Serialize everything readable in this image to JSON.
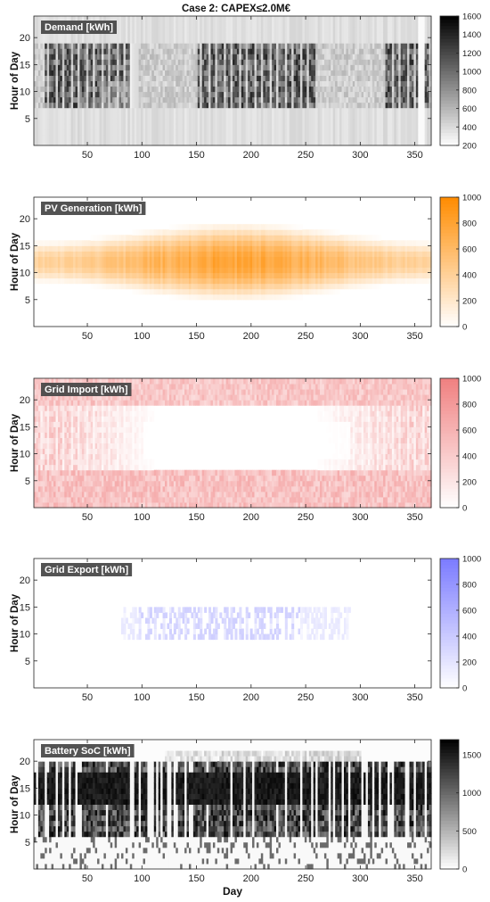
{
  "figure": {
    "title": "Case 2: CAPEX≤2.0M€",
    "xlabel": "Day"
  },
  "chart_data": [
    {
      "type": "heatmap",
      "title": "Demand [kWh]",
      "ylabel": "Hour of Day",
      "xlabel": "",
      "xlim": [
        1,
        365
      ],
      "ylim": [
        0,
        24
      ],
      "xticks": [
        50,
        100,
        150,
        200,
        250,
        300,
        350
      ],
      "yticks": [
        5,
        10,
        15,
        20
      ],
      "colorbar": {
        "min": 200,
        "max": 1600,
        "ticks": [
          200,
          400,
          600,
          800,
          1000,
          1200,
          1400,
          1600
        ],
        "low_color": "#ffffff",
        "high_color": "#000000"
      },
      "pattern": {
        "base_level": 320,
        "working_hours": [
          7,
          19
        ],
        "working_level": 1000,
        "weekly_stripes": true,
        "working_periods": [
          [
            10,
            95
          ],
          [
            150,
            258
          ],
          [
            320,
            365
          ]
        ],
        "noted_features": [
          "bright gaps on day 90-95 and 350-358",
          "dark vertical stripes on days near 230"
        ]
      }
    },
    {
      "type": "heatmap",
      "title": "PV Generation [kWh]",
      "ylabel": "Hour of Day",
      "xlabel": "",
      "xlim": [
        1,
        365
      ],
      "ylim": [
        0,
        24
      ],
      "xticks": [
        50,
        100,
        150,
        200,
        250,
        300,
        350
      ],
      "yticks": [
        5,
        10,
        15,
        20
      ],
      "colorbar": {
        "min": 0,
        "max": 1000,
        "ticks": [
          0,
          200,
          400,
          600,
          800,
          1000
        ],
        "low_color": "#ffffff",
        "high_color": "#ff8c00"
      },
      "pattern": {
        "peak_day": 185,
        "peak_hour": 12,
        "peak_level": 880,
        "winter_level": 450,
        "daylight_summer": [
          5,
          20
        ],
        "daylight_winter": [
          8,
          16
        ]
      }
    },
    {
      "type": "heatmap",
      "title": "Grid Import [kWh]",
      "ylabel": "Hour of Day",
      "xlabel": "",
      "xlim": [
        1,
        365
      ],
      "ylim": [
        0,
        24
      ],
      "xticks": [
        50,
        100,
        150,
        200,
        250,
        300,
        350
      ],
      "yticks": [
        5,
        10,
        15,
        20
      ],
      "colorbar": {
        "min": 0,
        "max": 1000,
        "ticks": [
          0,
          200,
          400,
          600,
          800,
          1000
        ],
        "low_color": "#ffffff",
        "high_color": "#f08080"
      },
      "pattern": {
        "night_level": 600,
        "evening_level": 550,
        "daytime_level_winter": 500,
        "daytime_level_summer": 0
      }
    },
    {
      "type": "heatmap",
      "title": "Grid Export [kWh]",
      "ylabel": "Hour of Day",
      "xlabel": "",
      "xlim": [
        1,
        365
      ],
      "ylim": [
        0,
        24
      ],
      "xticks": [
        50,
        100,
        150,
        200,
        250,
        300,
        350
      ],
      "yticks": [
        5,
        10,
        15,
        20
      ],
      "colorbar": {
        "min": 0,
        "max": 1000,
        "ticks": [
          0,
          200,
          400,
          600,
          800,
          1000
        ],
        "low_color": "#ffffff",
        "high_color": "#7b7bff"
      },
      "pattern": {
        "active_days": [
          80,
          290
        ],
        "active_hours": [
          9,
          15
        ],
        "typical_level": 250
      }
    },
    {
      "type": "heatmap",
      "title": "Battery SoC [kWh]",
      "ylabel": "Hour of Day",
      "xlabel": "Day",
      "xlim": [
        1,
        365
      ],
      "ylim": [
        0,
        24
      ],
      "xticks": [
        50,
        100,
        150,
        200,
        250,
        300,
        350
      ],
      "yticks": [
        5,
        10,
        15,
        20
      ],
      "colorbar": {
        "min": 0,
        "max": 1700,
        "ticks": [
          0,
          500,
          1000,
          1500
        ],
        "low_color": "#ffffff",
        "high_color": "#000000"
      },
      "pattern": {
        "charge_start_hour": 6,
        "full_hours": [
          12,
          18
        ],
        "empty_after_hour": 20,
        "full_level": 1650
      }
    }
  ]
}
